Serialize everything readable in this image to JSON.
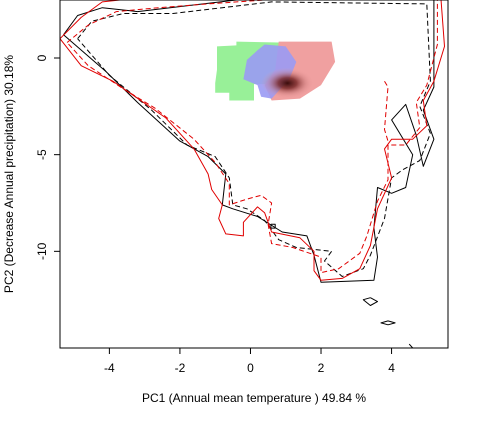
{
  "chart_data": {
    "type": "contour",
    "xlabel": "PC1 (Annual mean temperature ) 49.84 %",
    "ylabel": "PC2 (Decrease Annual precipitation) 30.18%",
    "xlim": [
      -5.4,
      5.6
    ],
    "ylim": [
      -15.0,
      3.0
    ],
    "xticks": [
      -4,
      -2,
      0,
      2,
      4
    ],
    "yticks": [
      0,
      -5,
      -10
    ],
    "xtick_labels": [
      "-4",
      "-2",
      "0",
      "2",
      "4"
    ],
    "ytick_labels": [
      "0",
      "-5",
      "-10"
    ],
    "grid": false,
    "legend": "none",
    "colors": {
      "black": "#000000",
      "red": "#e00000",
      "green": "#98f098",
      "blue": "#9a9af4",
      "pink": "#f0a0a0",
      "dark_core": "#3a0c0c"
    },
    "series": [
      {
        "color": "black",
        "style": "solid",
        "points": [
          [
            -5.3,
            1.2
          ],
          [
            -4.9,
            2.2
          ],
          [
            -4.2,
            2.6
          ],
          [
            -3.2,
            2.4
          ],
          [
            -1.8,
            2.7
          ],
          [
            -0.4,
            3.0
          ],
          [
            0.2,
            3.1
          ],
          [
            5.2,
            3.1
          ],
          [
            5.2,
            -1.5
          ],
          [
            4.9,
            -2.7
          ],
          [
            5.2,
            -4.2
          ],
          [
            4.9,
            -5.6
          ],
          [
            4.7,
            -4.0
          ],
          [
            4.4,
            -2.4
          ],
          [
            4.0,
            -3.2
          ],
          [
            4.6,
            -5.0
          ],
          [
            4.4,
            -6.7
          ],
          [
            4.0,
            -7.0
          ],
          [
            3.6,
            -6.7
          ],
          [
            3.5,
            -8.8
          ],
          [
            3.6,
            -10.3
          ],
          [
            3.5,
            -11.5
          ],
          [
            2.0,
            -11.6
          ],
          [
            1.8,
            -10.2
          ],
          [
            1.6,
            -9.2
          ],
          [
            0.9,
            -9.0
          ],
          [
            0.2,
            -8.2
          ],
          [
            -0.5,
            -7.8
          ],
          [
            -0.8,
            -7.6
          ],
          [
            -0.7,
            -6.0
          ],
          [
            -1.2,
            -5.1
          ],
          [
            -2.0,
            -4.3
          ],
          [
            -3.2,
            -2.3
          ],
          [
            -4.1,
            -0.7
          ],
          [
            -5.3,
            1.2
          ]
        ]
      },
      {
        "color": "black",
        "style": "dashed",
        "points": [
          [
            -4.9,
            1.0
          ],
          [
            -4.5,
            1.9
          ],
          [
            -3.6,
            2.3
          ],
          [
            -2.2,
            2.3
          ],
          [
            -0.8,
            2.6
          ],
          [
            0.6,
            2.9
          ],
          [
            5.0,
            2.8
          ],
          [
            5.1,
            -1.2
          ],
          [
            4.8,
            -2.5
          ],
          [
            5.1,
            -3.9
          ],
          [
            4.8,
            -5.3
          ],
          [
            4.3,
            -5.8
          ],
          [
            4.0,
            -6.2
          ],
          [
            3.8,
            -8.3
          ],
          [
            3.4,
            -10.2
          ],
          [
            3.2,
            -10.9
          ],
          [
            2.6,
            -11.3
          ],
          [
            2.1,
            -10.5
          ],
          [
            2.3,
            -10.0
          ],
          [
            1.3,
            -9.8
          ],
          [
            0.8,
            -9.4
          ],
          [
            0.4,
            -8.4
          ],
          [
            -0.1,
            -7.8
          ],
          [
            -0.5,
            -7.6
          ],
          [
            -0.6,
            -6.2
          ],
          [
            -1.0,
            -5.1
          ],
          [
            -1.8,
            -4.5
          ],
          [
            -2.8,
            -2.7
          ],
          [
            -4.0,
            -0.9
          ],
          [
            -4.9,
            1.0
          ]
        ]
      },
      {
        "color": "red",
        "style": "solid",
        "points": [
          [
            -5.4,
            1.0
          ],
          [
            -4.8,
            2.1
          ],
          [
            -4.2,
            2.9
          ],
          [
            -3.2,
            3.1
          ],
          [
            5.4,
            3.1
          ],
          [
            5.5,
            0.6
          ],
          [
            5.2,
            -1.2
          ],
          [
            4.9,
            -2.2
          ],
          [
            5.0,
            -3.5
          ],
          [
            4.6,
            -4.2
          ],
          [
            4.0,
            -4.2
          ],
          [
            3.8,
            -4.7
          ],
          [
            4.0,
            -6.2
          ],
          [
            3.6,
            -7.8
          ],
          [
            3.4,
            -9.7
          ],
          [
            3.1,
            -10.9
          ],
          [
            2.6,
            -11.4
          ],
          [
            2.0,
            -11.5
          ],
          [
            1.8,
            -11.0
          ],
          [
            1.8,
            -10.0
          ],
          [
            1.4,
            -9.3
          ],
          [
            0.6,
            -9.0
          ],
          [
            0.4,
            -8.0
          ],
          [
            0.2,
            -7.7
          ],
          [
            -0.2,
            -8.5
          ],
          [
            -0.2,
            -9.2
          ],
          [
            -0.7,
            -9.1
          ],
          [
            -0.9,
            -8.3
          ],
          [
            -0.8,
            -7.6
          ],
          [
            -1.1,
            -6.8
          ],
          [
            -1.2,
            -6.0
          ],
          [
            -1.6,
            -4.7
          ],
          [
            -2.4,
            -3.1
          ],
          [
            -3.9,
            -1.2
          ],
          [
            -4.8,
            -0.4
          ],
          [
            -5.4,
            1.0
          ]
        ]
      },
      {
        "color": "red",
        "style": "dashed",
        "points": [
          [
            -5.2,
            0.8
          ],
          [
            -4.6,
            1.7
          ],
          [
            -3.8,
            2.4
          ],
          [
            -2.6,
            2.6
          ],
          [
            -1.2,
            2.8
          ],
          [
            0.4,
            3.0
          ],
          [
            5.3,
            3.0
          ],
          [
            5.3,
            0.7
          ],
          [
            5.0,
            -1.4
          ],
          [
            4.7,
            -2.3
          ],
          [
            4.8,
            -3.6
          ],
          [
            4.4,
            -4.5
          ],
          [
            3.9,
            -4.5
          ],
          [
            3.9,
            -6.3
          ],
          [
            3.6,
            -7.4
          ],
          [
            3.3,
            -9.2
          ],
          [
            3.1,
            -10.1
          ],
          [
            2.5,
            -10.9
          ],
          [
            2.0,
            -11.1
          ],
          [
            2.0,
            -10.3
          ],
          [
            1.2,
            -9.8
          ],
          [
            0.6,
            -9.6
          ],
          [
            0.5,
            -8.6
          ],
          [
            0.6,
            -7.5
          ],
          [
            0.3,
            -7.1
          ],
          [
            -0.1,
            -7.3
          ],
          [
            -0.6,
            -7.6
          ],
          [
            -0.6,
            -6.5
          ],
          [
            -1.0,
            -5.4
          ],
          [
            -1.6,
            -4.2
          ],
          [
            -2.7,
            -2.6
          ],
          [
            -3.6,
            -1.6
          ],
          [
            -4.6,
            -0.4
          ],
          [
            -5.2,
            0.8
          ]
        ]
      },
      {
        "color": "red",
        "style": "dashed",
        "points": [
          [
            3.8,
            -1.2
          ],
          [
            3.9,
            -1.5
          ],
          [
            3.8,
            -3.7
          ],
          [
            3.9,
            -4.3
          ]
        ]
      },
      {
        "color": "black",
        "style": "solid",
        "points": [
          [
            3.4,
            -12.4
          ],
          [
            3.6,
            -12.6
          ],
          [
            3.4,
            -12.8
          ],
          [
            3.2,
            -12.5
          ],
          [
            3.4,
            -12.4
          ]
        ]
      },
      {
        "color": "black",
        "style": "solid",
        "points": [
          [
            3.9,
            -13.6
          ],
          [
            4.1,
            -13.7
          ],
          [
            3.9,
            -13.8
          ],
          [
            3.7,
            -13.7
          ],
          [
            3.9,
            -13.6
          ]
        ]
      },
      {
        "color": "black",
        "style": "solid",
        "points": [
          [
            4.5,
            -14.8
          ],
          [
            4.6,
            -15.0
          ]
        ]
      },
      {
        "color": "black",
        "style": "solid",
        "points": [
          [
            0.58,
            -8.6
          ],
          [
            0.7,
            -8.6
          ],
          [
            0.7,
            -8.8
          ],
          [
            0.58,
            -8.8
          ],
          [
            0.58,
            -8.6
          ]
        ]
      }
    ],
    "density_regions": [
      {
        "color": "green",
        "points": [
          [
            -0.95,
            0.6
          ],
          [
            -0.4,
            0.65
          ],
          [
            -0.4,
            0.85
          ],
          [
            0.8,
            0.8
          ],
          [
            0.8,
            -1.35
          ],
          [
            0.1,
            -1.35
          ],
          [
            0.1,
            -2.2
          ],
          [
            -0.6,
            -2.2
          ],
          [
            -0.6,
            -1.8
          ],
          [
            -1.0,
            -1.8
          ],
          [
            -1.0,
            -1.3
          ],
          [
            -0.95,
            -0.6
          ]
        ]
      },
      {
        "color": "pink",
        "points": [
          [
            0.8,
            0.85
          ],
          [
            2.3,
            0.85
          ],
          [
            2.4,
            -0.2
          ],
          [
            2.0,
            -1.4
          ],
          [
            1.4,
            -2.1
          ],
          [
            0.6,
            -2.2
          ],
          [
            0.4,
            -1.4
          ],
          [
            0.7,
            -0.6
          ]
        ]
      },
      {
        "color": "blue",
        "points": [
          [
            0.4,
            0.7
          ],
          [
            1.0,
            0.6
          ],
          [
            1.3,
            -0.2
          ],
          [
            1.1,
            -1.1
          ],
          [
            0.6,
            -2.1
          ],
          [
            0.3,
            -2.0
          ],
          [
            0.2,
            -1.4
          ],
          [
            -0.2,
            -1.1
          ],
          [
            -0.1,
            -0.1
          ],
          [
            0.2,
            0.4
          ]
        ]
      }
    ],
    "density_peak": [
      1.05,
      -1.3
    ]
  }
}
